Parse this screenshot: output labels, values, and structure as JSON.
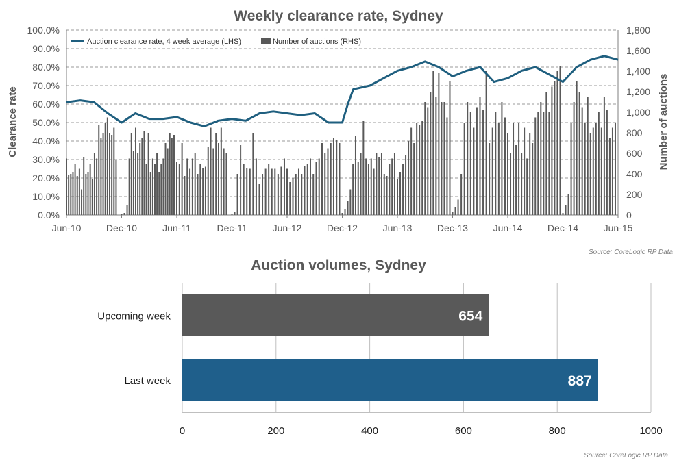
{
  "chart_data": [
    {
      "type": "line+bar",
      "title": "Weekly clearance rate, Sydney",
      "ylabel_left": "Clearance rate",
      "ylabel_right": "Number of auctions",
      "ylim_left": [
        0,
        100
      ],
      "ylim_right": [
        0,
        1800
      ],
      "y_left_ticks": [
        "0.0%",
        "10.0%",
        "20.0%",
        "30.0%",
        "40.0%",
        "50.0%",
        "60.0%",
        "70.0%",
        "80.0%",
        "90.0%",
        "100.0%"
      ],
      "y_right_ticks": [
        "0",
        "200",
        "400",
        "600",
        "800",
        "1,000",
        "1,200",
        "1,400",
        "1,600",
        "1,800"
      ],
      "x_ticks": [
        "Jun-10",
        "Dec-10",
        "Jun-11",
        "Dec-11",
        "Jun-12",
        "Dec-12",
        "Jun-13",
        "Dec-13",
        "Jun-14",
        "Dec-14",
        "Jun-15"
      ],
      "grid": "horizontal dashed",
      "legend_position": "top-left",
      "source": "Source: CoreLogic RP Data",
      "series": [
        {
          "name": "Auction clearance rate, 4 week average (LHS)",
          "axis": "left",
          "type": "line",
          "color": "#1f5f7f",
          "x_ticks_index": [
            0,
            0.25,
            0.5,
            0.75,
            1,
            1.25,
            1.5,
            1.75,
            2,
            2.25,
            2.5,
            2.75,
            3,
            3.25,
            3.5,
            3.75,
            4,
            4.25,
            4.5,
            4.75,
            5,
            5.1,
            5.2,
            5.5,
            5.75,
            6,
            6.25,
            6.5,
            6.75,
            7,
            7.25,
            7.5,
            7.75,
            8,
            8.25,
            8.5,
            8.75,
            9,
            9.25,
            9.5,
            9.75,
            10
          ],
          "values": [
            61,
            62,
            61,
            55,
            50,
            55,
            52,
            52,
            53,
            50,
            48,
            51,
            52,
            51,
            55,
            56,
            55,
            54,
            55,
            50,
            50,
            60,
            68,
            70,
            74,
            78,
            80,
            83,
            80,
            75,
            78,
            80,
            72,
            74,
            78,
            80,
            76,
            72,
            80,
            84,
            86,
            84
          ]
        },
        {
          "name": "Number of auctions (RHS)",
          "axis": "right",
          "type": "bar",
          "color": "#595959",
          "segments": [
            {
              "start": 0.0,
              "end": 0.9,
              "values": [
                550,
                390,
                400,
                420,
                500,
                380,
                450,
                250,
                560,
                400,
                420,
                500,
                350,
                600,
                550,
                880,
                750,
                800,
                900,
                950,
                800,
                780,
                850,
                540
              ]
            },
            {
              "start": 1.0,
              "end": 1.05,
              "values": [
                10,
                20
              ]
            },
            {
              "start": 1.1,
              "end": 1.95,
              "values": [
                100,
                550,
                800,
                620,
                850,
                600,
                700,
                750,
                820,
                500,
                800,
                420,
                550,
                500,
                600,
                420,
                500,
                550,
                700,
                650,
                800,
                750,
                780
              ]
            },
            {
              "start": 2.0,
              "end": 2.9,
              "values": [
                520,
                500,
                700,
                380,
                550,
                450,
                550,
                600,
                400,
                500,
                460,
                470,
                660,
                850,
                650,
                800,
                700,
                850,
                650,
                600
              ]
            },
            {
              "start": 3.0,
              "end": 3.05,
              "values": [
                10,
                30
              ]
            },
            {
              "start": 3.1,
              "end": 3.95,
              "values": [
                400,
                680,
                500,
                460,
                450,
                800,
                550,
                300,
                400,
                450,
                500,
                450,
                450,
                400,
                470,
                550
              ]
            },
            {
              "start": 4.0,
              "end": 4.95,
              "values": [
                450,
                320,
                360,
                400,
                450,
                400,
                480,
                500,
                550,
                400,
                520,
                550,
                700,
                600,
                650,
                700,
                750,
                730,
                700
              ]
            },
            {
              "start": 5.0,
              "end": 5.05,
              "values": [
                20,
                60
              ]
            },
            {
              "start": 5.1,
              "end": 5.95,
              "values": [
                140,
                250,
                500,
                770,
                520,
                600,
                920,
                550,
                500,
                550,
                450,
                600,
                560,
                600,
                400,
                380,
                500,
                550,
                600
              ]
            },
            {
              "start": 6.0,
              "end": 6.95,
              "values": [
                350,
                420,
                500,
                580,
                720,
                850,
                700,
                900,
                880,
                920,
                1100,
                1050,
                1200,
                1400,
                1150,
                1380,
                1100,
                1100,
                950,
                1300
              ]
            },
            {
              "start": 7.0,
              "end": 7.05,
              "values": [
                30,
                80
              ]
            },
            {
              "start": 7.1,
              "end": 7.95,
              "values": [
                150,
                400,
                900,
                1100,
                1000,
                850,
                1050,
                1150,
                1020,
                1400,
                700,
                850,
                1000,
                900,
                1100,
                950
              ]
            },
            {
              "start": 8.0,
              "end": 8.95,
              "values": [
                800,
                600,
                900,
                680,
                900,
                600,
                850,
                550,
                800,
                700,
                950,
                1000,
                1100,
                1000,
                1200,
                1000,
                1250,
                1300,
                1400,
                1450
              ]
            },
            {
              "start": 9.0,
              "end": 9.05,
              "values": [
                20,
                100
              ]
            },
            {
              "start": 9.1,
              "end": 9.95,
              "values": [
                200,
                900,
                1100,
                1300,
                1200,
                1050,
                900,
                1150,
                800,
                850,
                900,
                1000,
                850,
                1150,
                1020,
                750,
                850,
                900
              ]
            }
          ]
        }
      ]
    },
    {
      "type": "bar",
      "orientation": "horizontal",
      "title": "Auction volumes, Sydney",
      "categories": [
        "Upcoming week",
        "Last week"
      ],
      "values": [
        654,
        887
      ],
      "colors": [
        "#595959",
        "#1f5f8b"
      ],
      "xlim": [
        0,
        1000
      ],
      "x_ticks": [
        "0",
        "200",
        "400",
        "600",
        "800",
        "1000"
      ],
      "grid": "vertical",
      "source": "Source: CoreLogic RP Data"
    }
  ]
}
